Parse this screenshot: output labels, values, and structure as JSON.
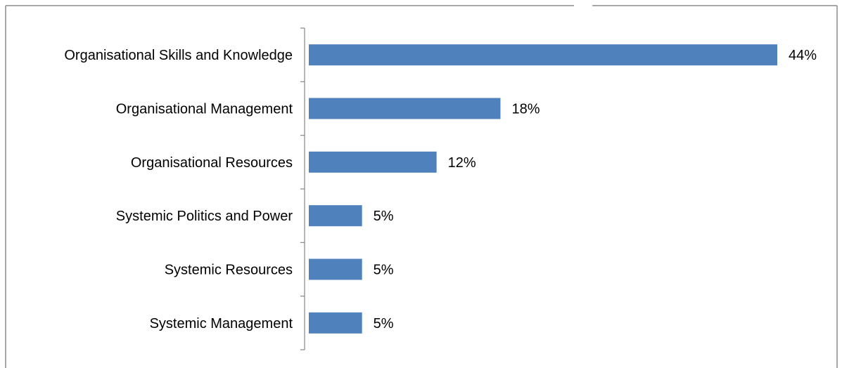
{
  "chart_data": {
    "type": "bar",
    "orientation": "horizontal",
    "title": "",
    "xlabel": "",
    "ylabel": "",
    "categories": [
      "Organisational Skills and Knowledge",
      "Organisational Management",
      "Organisational Resources",
      "Systemic Politics and Power",
      "Systemic Resources",
      "Systemic Management"
    ],
    "values": [
      44,
      18,
      12,
      5,
      5,
      5
    ],
    "value_labels": [
      "44%",
      "18%",
      "12%",
      "5%",
      "5%",
      "5%"
    ],
    "unit": "%",
    "xlim": [
      0,
      44
    ],
    "grid": false,
    "legend": "none",
    "colors": {
      "bar": "#4F81BD",
      "axis": "#868686",
      "border": "#8C8C8C",
      "text": "#000000"
    }
  }
}
